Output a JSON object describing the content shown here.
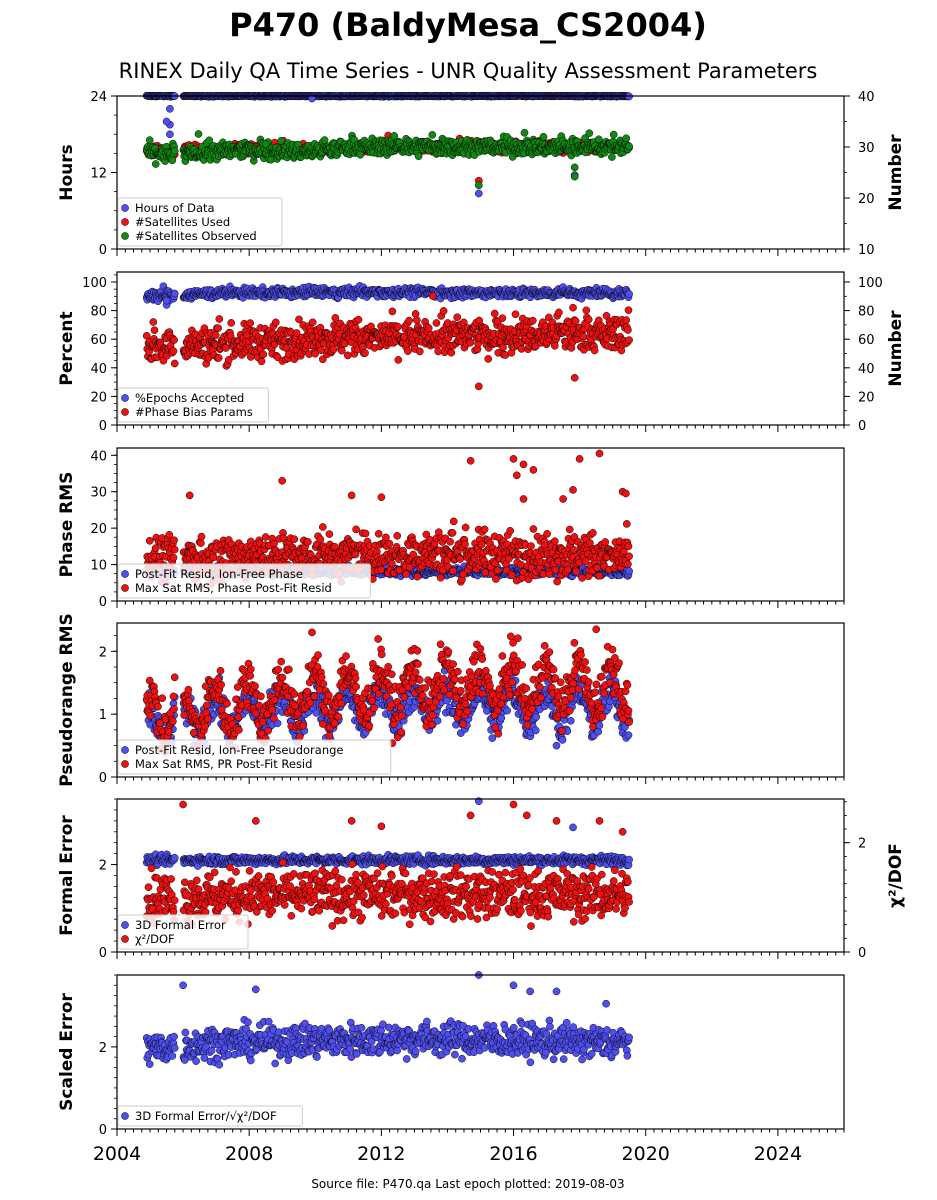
{
  "title": "P470 (BaldyMesa_CS2004)",
  "subtitle": "RINEX Daily QA Time Series - UNR Quality Assessment Parameters",
  "footer": "Source file: P470.qa Last epoch plotted: 2019-08-03",
  "x_axis": {
    "range": [
      2004,
      2026
    ],
    "tick_labels": [
      "2004",
      "2008",
      "2012",
      "2016",
      "2020",
      "2024"
    ],
    "ticks": [
      2004,
      2008,
      2012,
      2016,
      2020,
      2024
    ]
  },
  "colors": {
    "blue": "#4f4ff0",
    "red": "#ee1111",
    "green": "#118811"
  },
  "chart_data": [
    {
      "type": "scatter",
      "ylabel": "Hours",
      "ylabel_right": "Number",
      "ylim": [
        0,
        24
      ],
      "yticks": [
        0,
        12,
        24
      ],
      "ylim_right": [
        10,
        40
      ],
      "yticks_right": [
        10,
        20,
        30,
        40
      ],
      "legend_loc": "lower-left",
      "series": [
        {
          "name": "Hours of Data",
          "axis": "left",
          "color": "#4f4ff0",
          "base": [
            [
              2004.9,
              24
            ],
            [
              2012,
              24
            ],
            [
              2019.5,
              24
            ]
          ],
          "noise": 0.05,
          "extra": [
            [
              2005.6,
              22
            ],
            [
              2005.6,
              19.5
            ],
            [
              2005.6,
              18
            ],
            [
              2005.5,
              20
            ],
            [
              2009.9,
              23.6
            ],
            [
              2014.95,
              8.7
            ],
            [
              2017.85,
              11.6
            ]
          ]
        },
        {
          "name": "#Satellites Used",
          "axis": "right",
          "color": "#ee1111",
          "base": [
            [
              2004.9,
              29
            ],
            [
              2007,
              29.5
            ],
            [
              2010,
              29.5
            ],
            [
              2012,
              30
            ],
            [
              2019.5,
              30
            ]
          ],
          "noise": 0.5,
          "extra": [
            [
              2005.5,
              28.8
            ],
            [
              2008.2,
              30
            ],
            [
              2014.95,
              23.4
            ]
          ]
        },
        {
          "name": "#Satellites Observed",
          "axis": "right",
          "color": "#118811",
          "base": [
            [
              2004.9,
              29
            ],
            [
              2005.5,
              28.5
            ],
            [
              2005.9,
              28.5
            ],
            [
              2008,
              29.5
            ],
            [
              2010,
              29
            ],
            [
              2011,
              30
            ],
            [
              2019.5,
              30
            ]
          ],
          "noise": 0.8,
          "extra": [
            [
              2014.95,
              22.5
            ],
            [
              2017.85,
              26
            ],
            [
              2017.85,
              24.2
            ],
            [
              2008.5,
              30.6
            ]
          ]
        }
      ]
    },
    {
      "type": "scatter",
      "ylabel": "Percent",
      "ylabel_right": "Number",
      "ylim": [
        0,
        107
      ],
      "yticks": [
        0,
        20,
        40,
        60,
        80,
        100
      ],
      "ylim_right": [
        0,
        107
      ],
      "yticks_right": [
        0,
        20,
        40,
        60,
        80,
        100
      ],
      "legend_loc": "lower-left",
      "series": [
        {
          "name": "%Epochs Accepted",
          "axis": "left",
          "color": "#4f4ff0",
          "base": [
            [
              2004.9,
              90
            ],
            [
              2007,
              92
            ],
            [
              2013,
              93
            ],
            [
              2016,
              92
            ],
            [
              2019.5,
              92
            ]
          ],
          "noise": 1.6,
          "extra": [
            [
              2005.5,
              84
            ],
            [
              2005.5,
              87
            ]
          ]
        },
        {
          "name": "#Phase Bias Params",
          "axis": "right",
          "color": "#ee1111",
          "base": [
            [
              2004.9,
              56
            ],
            [
              2006,
              55
            ],
            [
              2010,
              60
            ],
            [
              2014,
              62
            ],
            [
              2019.5,
              64
            ]
          ],
          "noise": 6,
          "extra": [
            [
              2005.1,
              72
            ],
            [
              2014.95,
              27
            ],
            [
              2017.85,
              33
            ],
            [
              2017.8,
              82
            ]
          ]
        }
      ]
    },
    {
      "type": "scatter",
      "ylabel": "Phase RMS",
      "ylim": [
        0,
        42
      ],
      "yticks": [
        0,
        10,
        20,
        30,
        40
      ],
      "legend_loc": "lower-left",
      "series": [
        {
          "name": "Post-Fit Resid, Ion-Free Phase",
          "axis": "left",
          "color": "#4f4ff0",
          "base": [
            [
              2004.9,
              8
            ],
            [
              2012,
              8
            ],
            [
              2019.5,
              8
            ]
          ],
          "noise": 0.5,
          "extra": []
        },
        {
          "name": "Max Sat RMS, Phase Post-Fit Resid",
          "axis": "left",
          "color": "#ee1111",
          "base": [
            [
              2004.9,
              12
            ],
            [
              2010,
              12
            ],
            [
              2014,
              13
            ],
            [
              2019.5,
              12
            ]
          ],
          "noise": 3,
          "extra": [
            [
              2009,
              33
            ],
            [
              2014.7,
              38.5
            ],
            [
              2016,
              39
            ],
            [
              2016.3,
              37.5
            ],
            [
              2016.6,
              36
            ],
            [
              2018,
              39
            ],
            [
              2018.6,
              40.5
            ],
            [
              2019.3,
              30
            ],
            [
              2019.4,
              29.5
            ],
            [
              2011.1,
              29
            ],
            [
              2012,
              28.5
            ],
            [
              2006.2,
              29
            ],
            [
              2016.1,
              34.5
            ],
            [
              2016.3,
              28
            ],
            [
              2017.5,
              28
            ],
            [
              2017.8,
              30.5
            ]
          ]
        }
      ]
    },
    {
      "type": "scatter",
      "ylabel": "Pseudorange RMS",
      "ylim": [
        0,
        2.45
      ],
      "yticks": [
        0,
        1,
        2
      ],
      "legend_loc": "lower-left",
      "series": [
        {
          "name": "Post-Fit Resid, Ion-Free Pseudorange",
          "axis": "left",
          "color": "#4f4ff0",
          "base": [
            [
              2004.9,
              0.8
            ],
            [
              2006,
              0.95
            ],
            [
              2010,
              1.1
            ],
            [
              2014,
              1.15
            ],
            [
              2019.5,
              1.1
            ]
          ],
          "noise": 0.15,
          "wave": 0.25,
          "extra": [
            [
              2017.3,
              0.5
            ]
          ]
        },
        {
          "name": "Max Sat RMS, PR Post-Fit Resid",
          "axis": "left",
          "color": "#ee1111",
          "base": [
            [
              2004.9,
              1.0
            ],
            [
              2006,
              1.05
            ],
            [
              2010,
              1.3
            ],
            [
              2014,
              1.45
            ],
            [
              2019.5,
              1.45
            ]
          ],
          "noise": 0.2,
          "wave": 0.35,
          "extra": [
            [
              2009.9,
              2.3
            ],
            [
              2018.5,
              2.35
            ]
          ]
        }
      ]
    },
    {
      "type": "scatter",
      "ylabel": "Formal Error",
      "ylabel_right": "χ²/DOF",
      "ylim": [
        0,
        3.5
      ],
      "yticks": [
        0,
        2
      ],
      "ylim_right": [
        0,
        2.8
      ],
      "yticks_right": [
        0,
        2
      ],
      "legend_loc": "lower-left",
      "series": [
        {
          "name": "3D Formal Error",
          "axis": "left",
          "color": "#4f4ff0",
          "base": [
            [
              2004.9,
              2.1
            ],
            [
              2019.5,
              2.1
            ]
          ],
          "noise": 0.05,
          "extra": [
            [
              2014.95,
              3.45
            ],
            [
              2017.8,
              2.85
            ]
          ]
        },
        {
          "name": "χ²/DOF",
          "axis": "right",
          "color": "#ee1111",
          "base": [
            [
              2004.9,
              1.0
            ],
            [
              2010,
              1.05
            ],
            [
              2019.5,
              1.05
            ]
          ],
          "noise": 0.22,
          "extra": [
            [
              2006,
              2.7
            ],
            [
              2008.2,
              2.4
            ],
            [
              2011.1,
              2.4
            ],
            [
              2012,
              2.3
            ],
            [
              2014.7,
              2.5
            ],
            [
              2016,
              2.7
            ],
            [
              2016.4,
              2.5
            ],
            [
              2017.3,
              2.4
            ],
            [
              2018.6,
              2.4
            ],
            [
              2019.3,
              2.2
            ]
          ]
        }
      ]
    },
    {
      "type": "scatter",
      "ylabel": "Scaled Error",
      "ylim": [
        0,
        3.75
      ],
      "yticks": [
        0,
        2
      ],
      "legend_loc": "lower-left",
      "series": [
        {
          "name": "3D Formal Error/√χ²/DOF",
          "axis": "left",
          "color": "#4f4ff0",
          "base": [
            [
              2004.9,
              1.95
            ],
            [
              2007,
              2.1
            ],
            [
              2013,
              2.2
            ],
            [
              2019.5,
              2.1
            ]
          ],
          "noise": 0.2,
          "extra": [
            [
              2006,
              3.5
            ],
            [
              2008.2,
              3.4
            ],
            [
              2014.95,
              3.75
            ],
            [
              2016,
              3.5
            ],
            [
              2016.5,
              3.35
            ],
            [
              2017.3,
              3.35
            ],
            [
              2018.8,
              3.05
            ]
          ]
        }
      ]
    }
  ]
}
